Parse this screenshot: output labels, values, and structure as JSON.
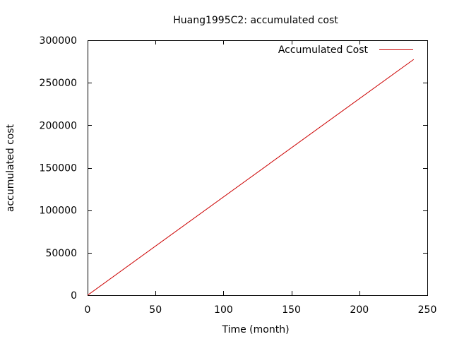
{
  "chart_data": {
    "type": "line",
    "title": "Huang1995C2: accumulated cost",
    "xlabel": "Time (month)",
    "ylabel": "accumulated cost",
    "xlim": [
      0,
      250
    ],
    "ylim": [
      0,
      300000
    ],
    "x_ticks": [
      0,
      50,
      100,
      150,
      200,
      250
    ],
    "y_ticks": [
      0,
      50000,
      100000,
      150000,
      200000,
      250000,
      300000
    ],
    "grid": false,
    "legend_position": "top-right",
    "series": [
      {
        "name": "Accumulated Cost",
        "color": "#cc0000",
        "x": [
          0,
          240
        ],
        "y": [
          0,
          277500
        ]
      }
    ]
  }
}
